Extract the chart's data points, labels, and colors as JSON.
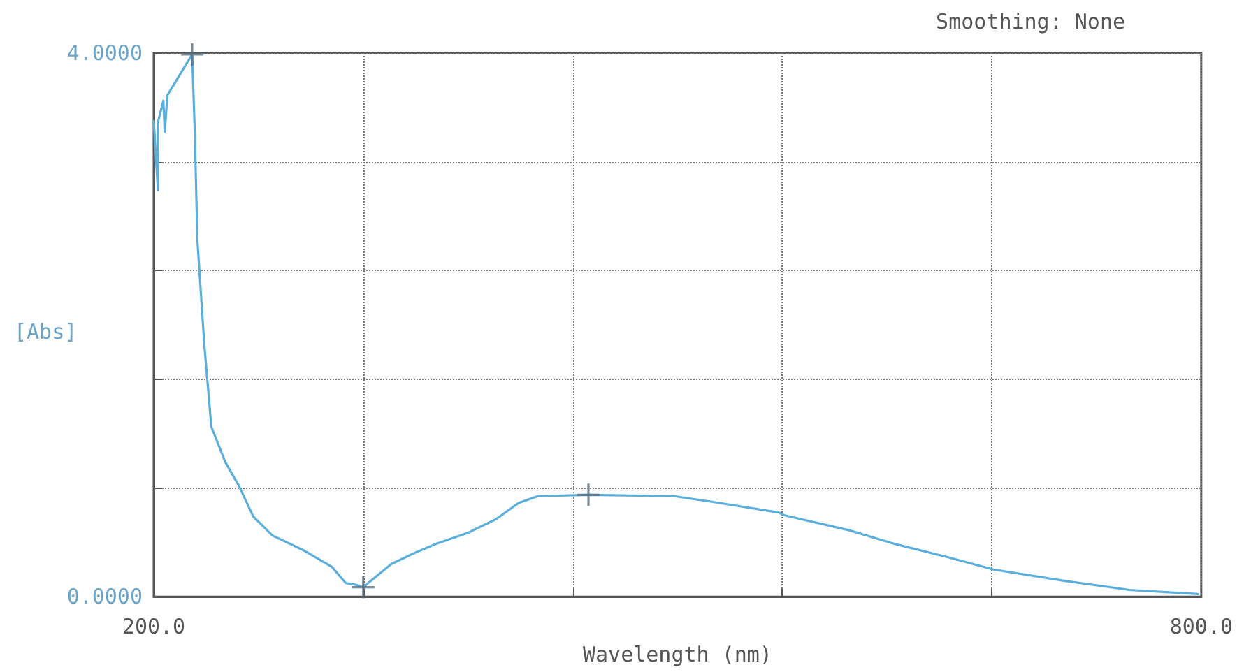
{
  "chart_data": {
    "type": "line",
    "xlabel": "Wavelength (nm)",
    "ylabel": "[Abs]",
    "annotations": [
      "Smoothing: None"
    ],
    "series": [
      {
        "color": "#5aaedc",
        "marker": "none",
        "x": [
          200,
          202.4,
          202.4,
          205.5,
          206.3,
          207.8,
          222,
          223.5,
          225,
          229,
          233,
          241,
          248.6,
          257,
          268,
          286,
          302,
          310,
          315,
          320,
          336,
          349,
          362,
          380,
          396,
          409,
          420,
          449,
          498,
          519,
          558,
          561,
          598,
          624,
          655,
          681,
          720,
          759,
          798
        ],
        "values": [
          3.5,
          2.99,
          3.49,
          3.65,
          3.42,
          3.69,
          3.99,
          3.42,
          2.62,
          1.85,
          1.25,
          0.99,
          0.82,
          0.59,
          0.45,
          0.34,
          0.22,
          0.1,
          0.09,
          0.07,
          0.24,
          0.32,
          0.39,
          0.47,
          0.57,
          0.69,
          0.74,
          0.75,
          0.74,
          0.7,
          0.62,
          0.6,
          0.49,
          0.39,
          0.29,
          0.2,
          0.12,
          0.05,
          0.02
        ]
      },
      {
        "type": "scatter",
        "color": "#5a6f80",
        "marker": "cross",
        "x": [
          222,
          320,
          449
        ],
        "values": [
          3.99,
          0.07,
          0.75
        ]
      }
    ],
    "xlim": [
      200,
      800
    ],
    "xticks": [
      {
        "value": 200,
        "label": "200.0"
      },
      {
        "value": 320,
        "label": null
      },
      {
        "value": 440,
        "label": null
      },
      {
        "value": 560,
        "label": null
      },
      {
        "value": 680,
        "label": null
      },
      {
        "value": 800,
        "label": "800.0"
      }
    ],
    "ylim": [
      0,
      4
    ],
    "yticks": [
      {
        "value": 0,
        "label": "0.0000"
      },
      {
        "value": 0.8,
        "label": null
      },
      {
        "value": 1.6,
        "label": null
      },
      {
        "value": 2.4,
        "label": null
      },
      {
        "value": 3.2,
        "label": null
      },
      {
        "value": 4,
        "label": "4.0000"
      }
    ],
    "grid": true,
    "line_style": "solid"
  }
}
